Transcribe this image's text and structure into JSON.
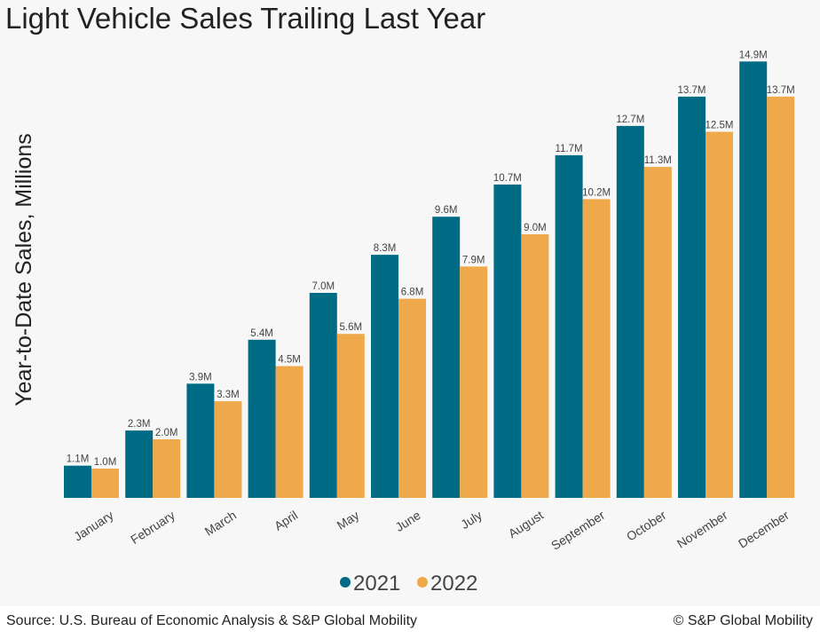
{
  "chart_data": {
    "type": "bar",
    "title": "Light Vehicle Sales Trailing Last Year",
    "xlabel": "",
    "ylabel": "Year-to-Date Sales, Millions",
    "categories": [
      "January",
      "February",
      "March",
      "April",
      "May",
      "June",
      "July",
      "August",
      "September",
      "October",
      "November",
      "December"
    ],
    "series": [
      {
        "name": "2021",
        "color": "#006b84",
        "values": [
          1.1,
          2.3,
          3.9,
          5.4,
          7.0,
          8.3,
          9.6,
          10.7,
          11.7,
          12.7,
          13.7,
          14.9
        ],
        "labels": [
          "1.1M",
          "2.3M",
          "3.9M",
          "5.4M",
          "7.0M",
          "8.3M",
          "9.6M",
          "10.7M",
          "11.7M",
          "12.7M",
          "13.7M",
          "14.9M"
        ]
      },
      {
        "name": "2022",
        "color": "#f0a94a",
        "values": [
          1.0,
          2.0,
          3.3,
          4.5,
          5.6,
          6.8,
          7.9,
          9.0,
          10.2,
          11.3,
          12.5,
          13.7
        ],
        "labels": [
          "1.0M",
          "2.0M",
          "3.3M",
          "4.5M",
          "5.6M",
          "6.8M",
          "7.9M",
          "9.0M",
          "10.2M",
          "11.3M",
          "12.5M",
          "13.7M"
        ]
      }
    ],
    "ylim": [
      0,
      15
    ],
    "grid": false,
    "legend_position": "bottom"
  },
  "footer": {
    "source": "Source: U.S. Bureau of Economic Analysis & S&P Global Mobility",
    "copyright": "© S&P Global Mobility"
  }
}
